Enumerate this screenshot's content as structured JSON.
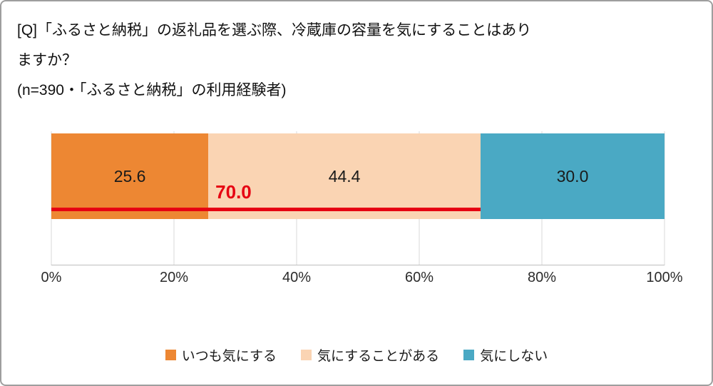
{
  "chart_data": {
    "type": "bar",
    "orientation": "horizontal-stacked",
    "title_line1": "[Q]「ふるさと納税」の返礼品を選ぶ際、冷蔵庫の容量を気にすることはあり",
    "title_line2": "ますか？",
    "subtitle": "(n=390・「ふるさと納税」の利用経験者)",
    "series": [
      {
        "name": "いつも気にする",
        "value": 25.6,
        "color": "#ED8733"
      },
      {
        "name": "気にすることがある",
        "value": 44.4,
        "color": "#FAD4B3"
      },
      {
        "name": "気にしない",
        "value": 30.0,
        "color": "#4AA9C4"
      }
    ],
    "annotation": {
      "label": "70.0",
      "value": 70.0,
      "color": "#E60012"
    },
    "x_ticks": [
      "0%",
      "20%",
      "40%",
      "60%",
      "80%",
      "100%"
    ],
    "xlim": [
      0,
      100
    ],
    "grid": true,
    "legend_position": "bottom",
    "colors": {
      "gridline": "#d9d9d9",
      "axis_line": "#bfbfbf",
      "frame_border": "#9e9e9e"
    }
  }
}
